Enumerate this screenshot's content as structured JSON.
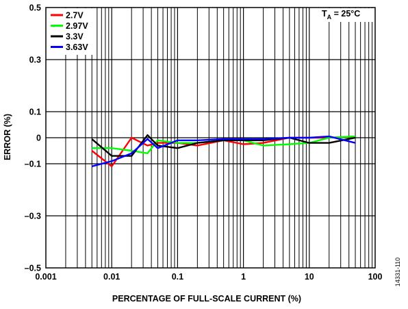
{
  "chart_data": {
    "type": "line",
    "title": "",
    "xlabel": "PERCENTAGE OF FULL-SCALE CURRENT (%)",
    "ylabel": "ERROR (%)",
    "x_scale": "log",
    "xlim": [
      0.001,
      100
    ],
    "ylim": [
      -0.5,
      0.5
    ],
    "x_ticks": [
      0.001,
      0.01,
      0.1,
      1,
      10,
      100
    ],
    "x_tick_labels": [
      "0.001",
      "0.01",
      "0.1",
      "1",
      "10",
      "100"
    ],
    "y_ticks": [
      -0.5,
      -0.3,
      -0.1,
      0,
      0.1,
      0.3,
      0.5
    ],
    "y_tick_labels": [
      "–0.5",
      "–0.3",
      "–0.1",
      "0",
      "0.1",
      "0.3",
      "0.5"
    ],
    "grid": true,
    "legend_position": "top-left",
    "annotation": {
      "main": "T",
      "sub": "A",
      "rest": " = 25°C"
    },
    "figure_id": "14331-110",
    "series": [
      {
        "name": "2.7V",
        "color": "#ff0000",
        "x": [
          0.005,
          0.01,
          0.02,
          0.035,
          0.05,
          0.1,
          0.2,
          0.5,
          1,
          2,
          5,
          10,
          20,
          50
        ],
        "y": [
          -0.05,
          -0.11,
          0.0,
          -0.03,
          -0.02,
          -0.02,
          -0.03,
          -0.01,
          -0.025,
          -0.02,
          0.0,
          0.0,
          0.0,
          0.005
        ]
      },
      {
        "name": "2.97V",
        "color": "#00ff00",
        "x": [
          0.005,
          0.01,
          0.02,
          0.035,
          0.05,
          0.1,
          0.2,
          0.5,
          1,
          2,
          5,
          10,
          20,
          50
        ],
        "y": [
          -0.04,
          -0.04,
          -0.05,
          -0.06,
          -0.01,
          -0.02,
          -0.02,
          -0.01,
          -0.01,
          -0.03,
          -0.025,
          -0.02,
          0.0,
          0.005
        ]
      },
      {
        "name": "3.3V",
        "color": "#000000",
        "x": [
          0.005,
          0.01,
          0.02,
          0.035,
          0.05,
          0.1,
          0.2,
          0.5,
          1,
          2,
          5,
          10,
          20,
          50
        ],
        "y": [
          -0.005,
          -0.07,
          -0.07,
          0.01,
          -0.03,
          -0.04,
          -0.02,
          -0.01,
          -0.01,
          -0.01,
          0.0,
          -0.02,
          -0.02,
          0.0
        ]
      },
      {
        "name": "3.63V",
        "color": "#0000ff",
        "x": [
          0.005,
          0.01,
          0.02,
          0.035,
          0.05,
          0.1,
          0.2,
          0.5,
          1,
          2,
          5,
          10,
          20,
          50
        ],
        "y": [
          -0.11,
          -0.09,
          -0.06,
          -0.005,
          -0.04,
          -0.01,
          -0.01,
          -0.005,
          -0.005,
          -0.005,
          0.0,
          0.0,
          0.005,
          -0.02
        ]
      }
    ]
  }
}
